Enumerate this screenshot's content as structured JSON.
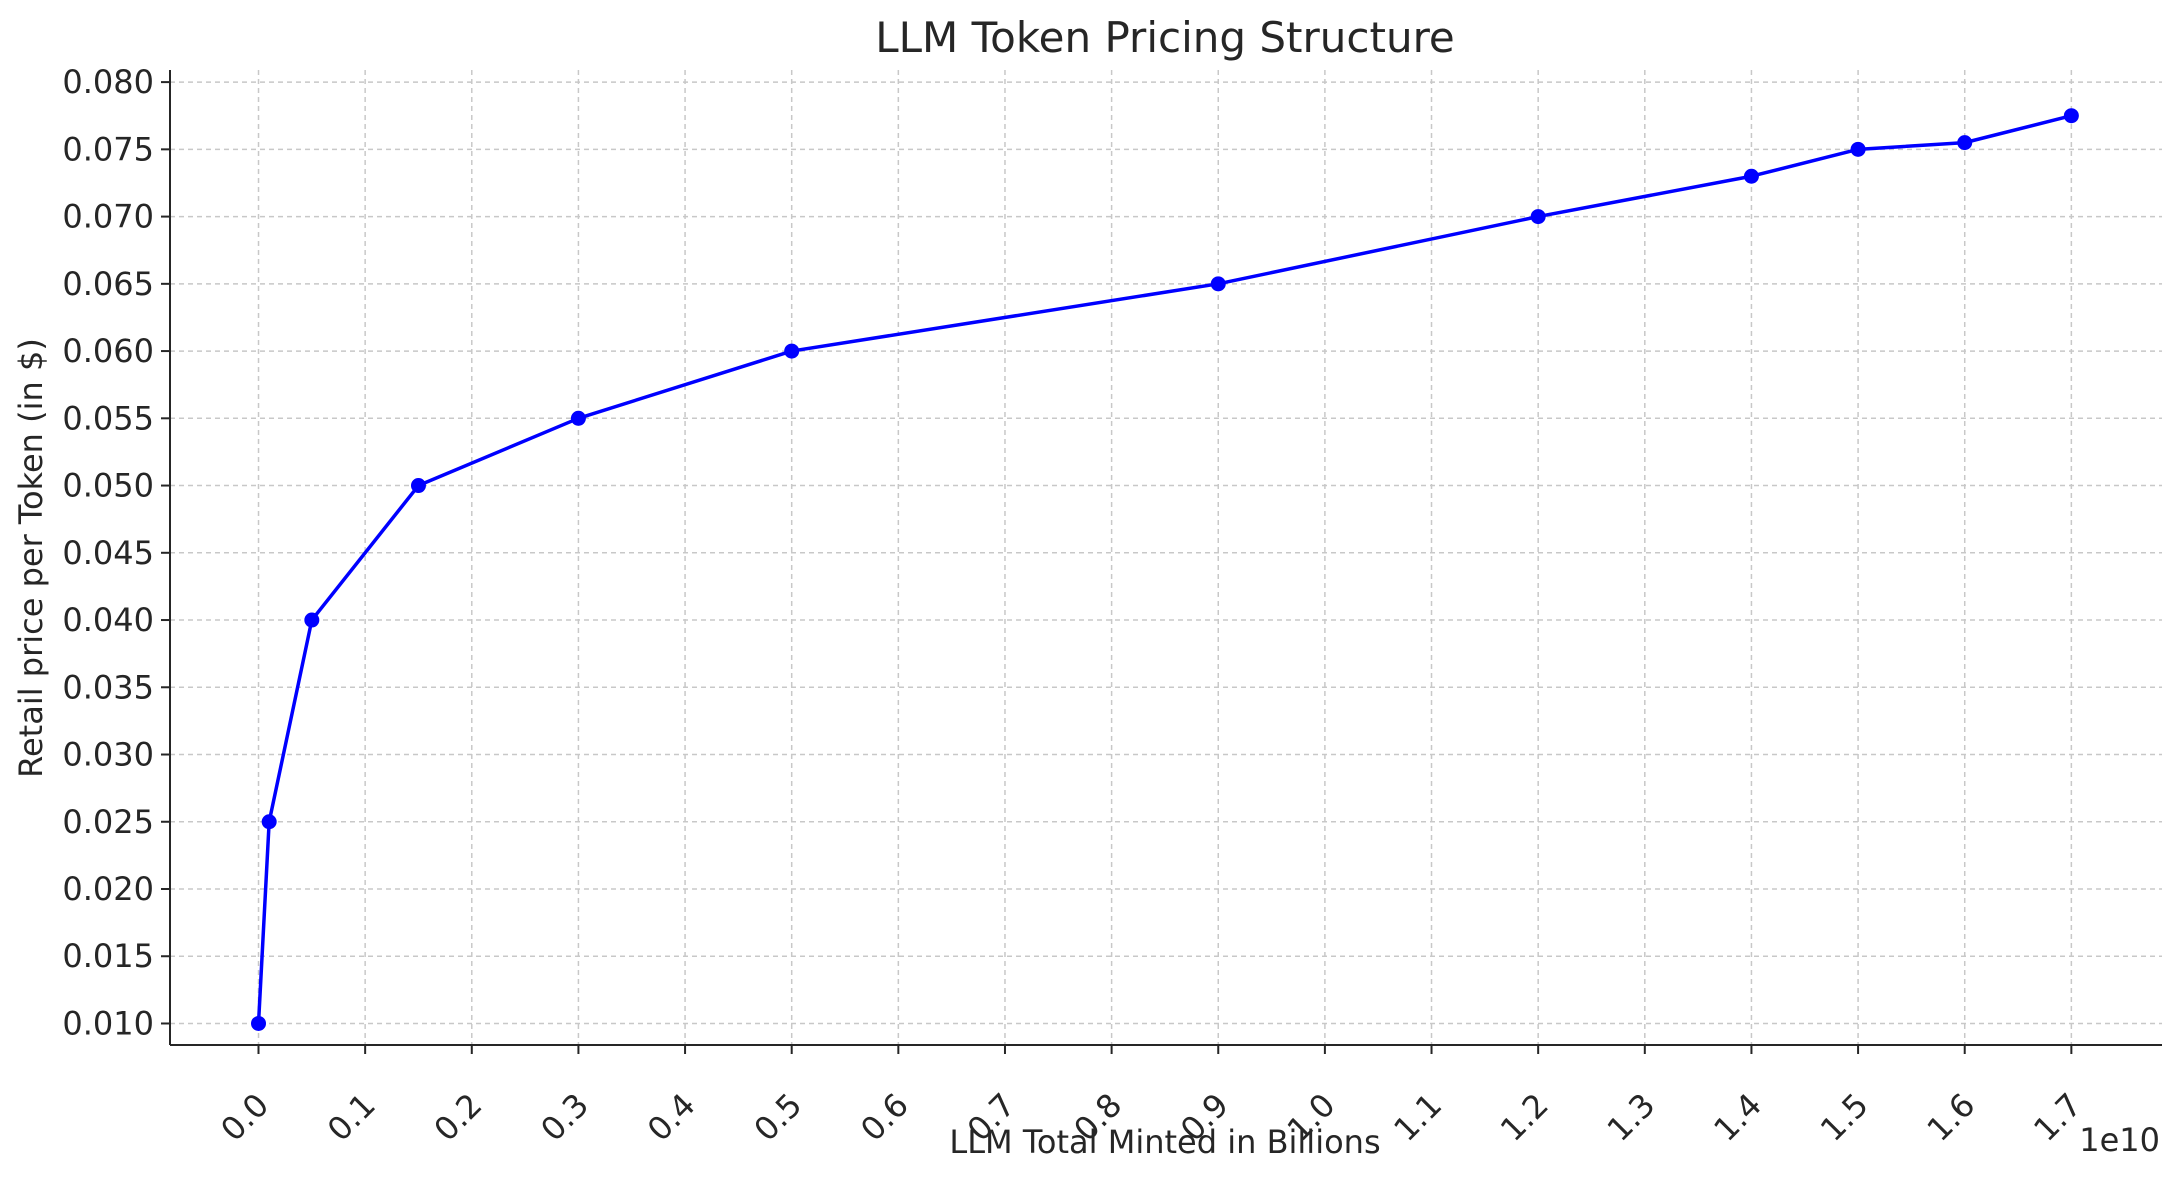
{
  "chart_data": {
    "type": "line",
    "title": "LLM Token Pricing Structure",
    "xlabel": "LLM Total Minted in Billions",
    "ylabel": "Retail price per Token (in $)",
    "x_offset_label": "1e10",
    "x_scale_multiplier": 10000000000,
    "xlim": [
      -0.083,
      1.785
    ],
    "ylim": [
      0.0084,
      0.0809
    ],
    "x_ticks": [
      "0.0",
      "0.1",
      "0.2",
      "0.3",
      "0.4",
      "0.5",
      "0.6",
      "0.7",
      "0.8",
      "0.9",
      "1.0",
      "1.1",
      "1.2",
      "1.3",
      "1.4",
      "1.5",
      "1.6",
      "1.7"
    ],
    "y_ticks": [
      "0.010",
      "0.015",
      "0.020",
      "0.025",
      "0.030",
      "0.035",
      "0.040",
      "0.045",
      "0.050",
      "0.055",
      "0.060",
      "0.065",
      "0.070",
      "0.075",
      "0.080"
    ],
    "grid": true,
    "grid_style": "dashed",
    "line_color": "#0000ff",
    "grid_color": "#c8c8c8",
    "series": [
      {
        "x": [
          0.0,
          0.01,
          0.05,
          0.15,
          0.3,
          0.5,
          0.9,
          1.2,
          1.4,
          1.5,
          1.6,
          1.7
        ],
        "y": [
          0.01,
          0.025,
          0.04,
          0.05,
          0.055,
          0.06,
          0.065,
          0.07,
          0.073,
          0.075,
          0.0755,
          0.0775
        ]
      }
    ]
  }
}
